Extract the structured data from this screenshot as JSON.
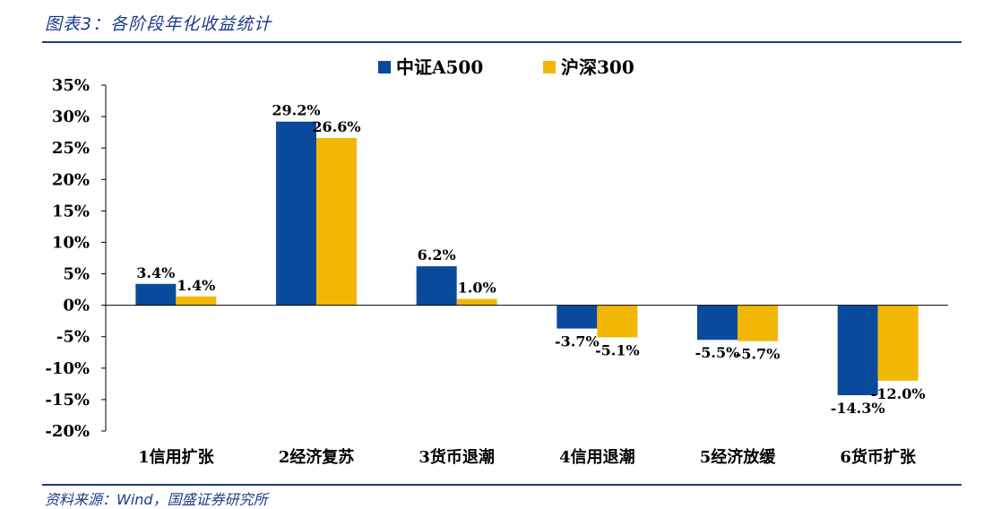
{
  "figure": {
    "title": "图表3：各阶段年化收益统计",
    "source": "资料来源：Wind，国盛证券研究所"
  },
  "chart_data": {
    "type": "bar",
    "categories": [
      "1信用扩张",
      "2经济复苏",
      "3货币退潮",
      "4信用退潮",
      "5经济放缓",
      "6货币扩张"
    ],
    "series": [
      {
        "name": "中证A500",
        "color": "#0a4a9c",
        "values": [
          3.4,
          29.2,
          6.2,
          -3.7,
          -5.5,
          -14.3
        ],
        "labels": [
          "3.4%",
          "29.2%",
          "6.2%",
          "-3.7%",
          "-5.5%",
          "-14.3%"
        ]
      },
      {
        "name": "沪深300",
        "color": "#f2b705",
        "values": [
          1.4,
          26.6,
          1.0,
          -5.1,
          -5.7,
          -12.0
        ],
        "labels": [
          "1.4%",
          "26.6%",
          "1.0%",
          "-5.1%",
          "-5.7%",
          "-12.0%"
        ]
      }
    ],
    "ylim": [
      -20,
      35
    ],
    "yticks": [
      35,
      30,
      25,
      20,
      15,
      10,
      5,
      0,
      -5,
      -10,
      -15,
      -20
    ],
    "ytick_labels": [
      "35%",
      "30%",
      "25%",
      "20%",
      "15%",
      "10%",
      "5%",
      "0%",
      "-5%",
      "-10%",
      "-15%",
      "-20%"
    ],
    "xlabel": "",
    "ylabel": "",
    "grid": false,
    "legend_position": "top-center"
  }
}
